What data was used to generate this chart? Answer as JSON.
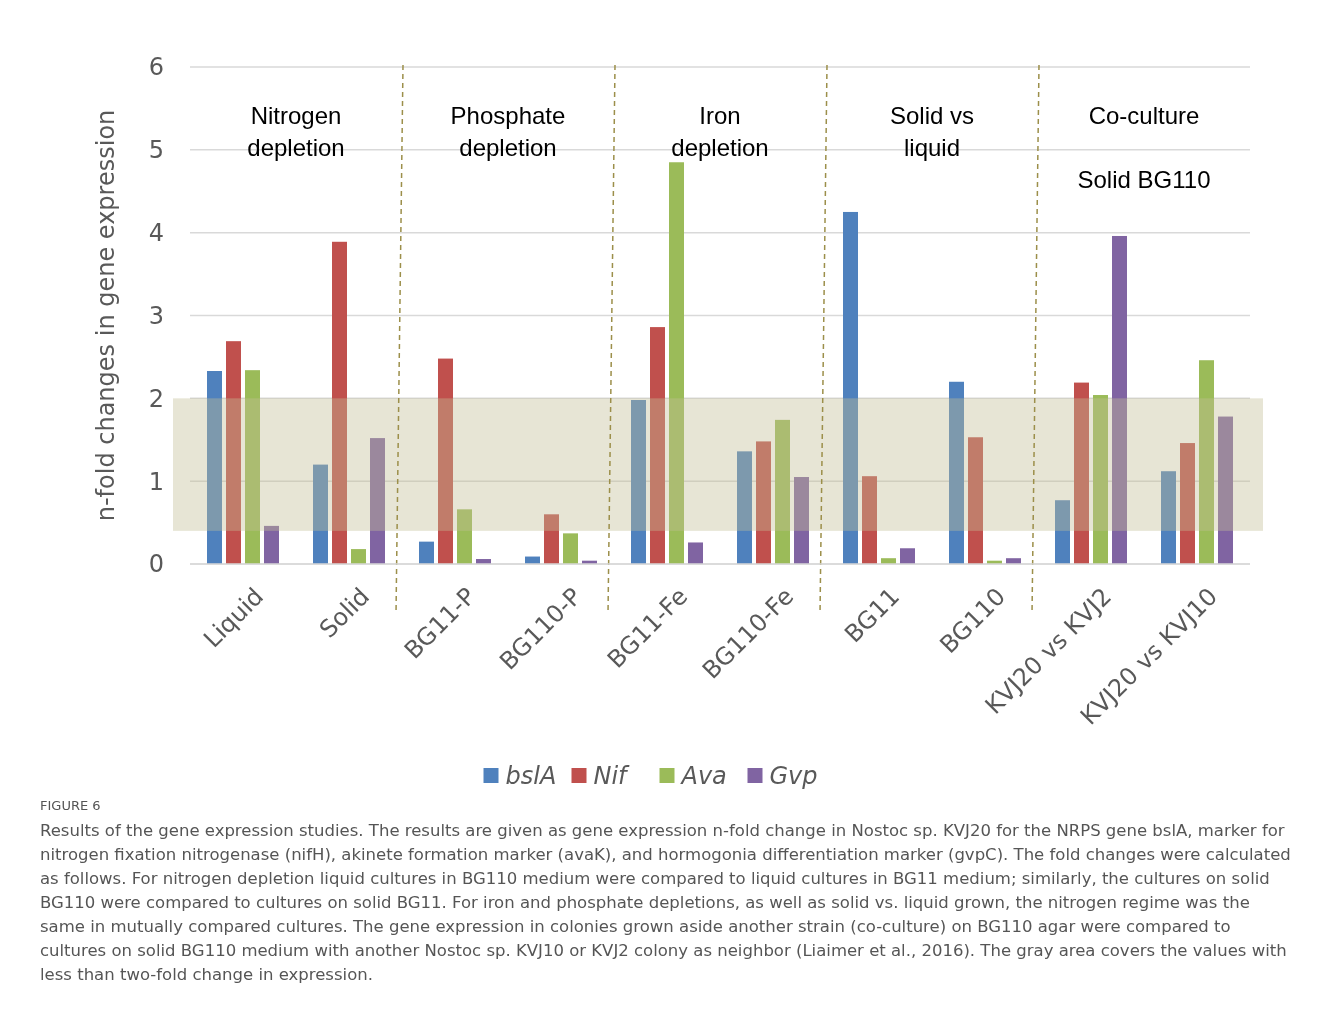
{
  "chart_data": {
    "type": "bar",
    "title": "FIGURE 6",
    "ylabel": "n-fold changes in gene expression",
    "categories": [
      "Liquid",
      "Solid",
      "BG11-P",
      "BG110-P",
      "BG11-Fe",
      "BG110-Fe",
      "BG11",
      "BG110",
      "KVJ20 vs KVJ2",
      "KVJ20 vs KVJ10"
    ],
    "series": [
      {
        "name": "bslA",
        "color": "#4f81bd",
        "values": [
          2.33,
          1.2,
          0.27,
          0.09,
          1.98,
          1.36,
          4.25,
          2.2,
          0.77,
          1.12
        ]
      },
      {
        "name": "Nif",
        "color": "#c0504d",
        "values": [
          2.69,
          3.89,
          2.48,
          0.6,
          2.86,
          1.48,
          1.06,
          1.53,
          2.19,
          1.46
        ]
      },
      {
        "name": "Ava",
        "color": "#9bbb59",
        "values": [
          2.34,
          0.18,
          0.66,
          0.37,
          4.85,
          1.74,
          0.07,
          0.04,
          2.04,
          2.46
        ]
      },
      {
        "name": "Gvp",
        "color": "#8064a2",
        "values": [
          0.46,
          1.52,
          0.06,
          0.04,
          0.26,
          1.05,
          0.19,
          0.07,
          3.96,
          1.78
        ]
      }
    ],
    "ylim": [
      0,
      6
    ],
    "yticks": [
      0,
      1,
      2,
      3,
      4,
      5,
      6
    ],
    "grid": "y",
    "legend": "bottom",
    "bands": [
      {
        "axis": "y",
        "from": 0.4,
        "to": 2,
        "color": "#c4bd97"
      }
    ],
    "annotations": [
      "Nitrogen\ndepletion",
      "Phosphate\ndepletion",
      "Iron\ndepletion",
      "Solid vs\nliquid",
      "Co-culture\n\nSolid BG110",
      "Results of the gene expression studies. The results are given as gene expression n-fold change in Nostoc sp. KVJ20 for the NRPS gene bslA, marker for nitrogen fixation nitrogenase (nifH), akinete formation marker (avaK), and hormogonia differentiation marker (gvpC). The fold changes were calculated as follows. For nitrogen depletion liquid cultures in BG110 medium were compared to liquid cultures in BG11 medium; similarly, the cultures on solid BG110 were compared to cultures on solid BG11. For iron and phosphate depletions, as well as solid vs. liquid grown, the nitrogen regime was the same in mutually compared cultures. The gene expression in colonies grown aside another strain (co-culture) on BG110 agar were compared to cultures on solid BG110 medium with another Nostoc sp. KVJ10 or KVJ2 colony as neighbor (Liaimer et al., 2016). The gray area covers the values with less than two-fold change in expression."
    ]
  }
}
